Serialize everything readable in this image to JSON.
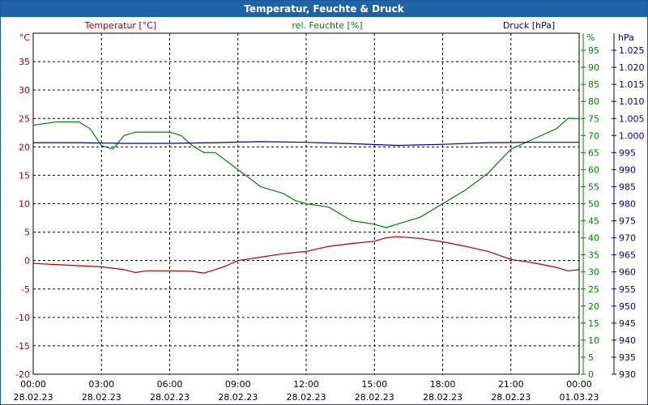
{
  "window": {
    "title": "Temperatur, Feuchte & Druck"
  },
  "chart_data": {
    "type": "line",
    "title": "Temperatur, Feuchte & Druck",
    "grid": true,
    "x_ticks": [
      {
        "time": "00:00",
        "date": "28.02.23"
      },
      {
        "time": "03:00",
        "date": "28.02.23"
      },
      {
        "time": "06:00",
        "date": "28.02.23"
      },
      {
        "time": "09:00",
        "date": "28.02.23"
      },
      {
        "time": "12:00",
        "date": "28.02.23"
      },
      {
        "time": "15:00",
        "date": "28.02.23"
      },
      {
        "time": "18:00",
        "date": "28.02.23"
      },
      {
        "time": "21:00",
        "date": "28.02.23"
      },
      {
        "time": "00:00",
        "date": "01.03.23"
      }
    ],
    "x_hours": [
      0,
      24
    ],
    "axes": {
      "temperature": {
        "label": "Temperatur [°C]",
        "unit": "°C",
        "range": [
          -20,
          40
        ],
        "ticks": [
          35,
          30,
          25,
          20,
          15,
          10,
          5,
          0,
          -5,
          -10,
          -15,
          -20
        ],
        "color": "#b00000"
      },
      "humidity": {
        "label": "rel. Feuchte [%]",
        "unit": "%",
        "range": [
          0,
          100
        ],
        "ticks": [
          95,
          90,
          85,
          80,
          75,
          70,
          65,
          60,
          55,
          50,
          45,
          40,
          35,
          30,
          25,
          20,
          15,
          10,
          5,
          0
        ],
        "color": "#008000"
      },
      "pressure": {
        "label": "Druck [hPa]",
        "unit": "hPa",
        "range": [
          930,
          1030
        ],
        "ticks": [
          "1.025",
          "1.020",
          "1.015",
          "1.010",
          "1.005",
          "1.000",
          "995",
          "990",
          "985",
          "980",
          "975",
          "970",
          "965",
          "960",
          "955",
          "950",
          "945",
          "940",
          "935",
          "930"
        ],
        "color": "#00008b"
      }
    },
    "series": [
      {
        "name": "Temperatur [°C]",
        "axis": "temperature",
        "color": "#b00000",
        "x": [
          0,
          1,
          2,
          3,
          4,
          4.5,
          5,
          6,
          7,
          7.5,
          8,
          8.5,
          9,
          10,
          11,
          12,
          13,
          14,
          15,
          15.5,
          16,
          17,
          18,
          19,
          20,
          21,
          22,
          23,
          23.5,
          24
        ],
        "y": [
          -0.5,
          -0.7,
          -0.9,
          -1.1,
          -1.6,
          -2.1,
          -1.8,
          -1.8,
          -1.9,
          -2.2,
          -1.6,
          -0.9,
          0.0,
          0.6,
          1.2,
          1.6,
          2.5,
          3.0,
          3.4,
          4.0,
          4.2,
          3.9,
          3.3,
          2.5,
          1.6,
          0.2,
          -0.4,
          -1.2,
          -1.8,
          -1.6
        ]
      },
      {
        "name": "rel. Feuchte [%]",
        "axis": "humidity",
        "color": "#008000",
        "x": [
          0,
          1,
          2,
          2.5,
          3,
          3.5,
          4,
          4.5,
          5,
          5.5,
          6,
          6.5,
          7,
          7.5,
          8,
          9,
          10,
          11,
          11.5,
          12,
          13,
          13.5,
          14,
          15,
          15.5,
          16,
          17,
          18,
          19,
          20,
          21,
          22,
          23,
          23.5,
          24
        ],
        "y": [
          73,
          74,
          74,
          72,
          67,
          66,
          70,
          71,
          71,
          71,
          71,
          70,
          67,
          65,
          65,
          60,
          55,
          53,
          51,
          50,
          49,
          47,
          45,
          44,
          43,
          44,
          46,
          50,
          54,
          59,
          66,
          69,
          72,
          75,
          75
        ]
      },
      {
        "name": "Druck [hPa]",
        "axis": "pressure",
        "color": "#00008b",
        "x": [
          0,
          2,
          4,
          6,
          8,
          10,
          12,
          14,
          16,
          18,
          20,
          22,
          24
        ],
        "y": [
          997.9,
          997.9,
          997.7,
          997.7,
          997.9,
          998.2,
          998.0,
          997.6,
          997.1,
          997.4,
          997.9,
          998.0,
          998.0
        ]
      }
    ]
  }
}
